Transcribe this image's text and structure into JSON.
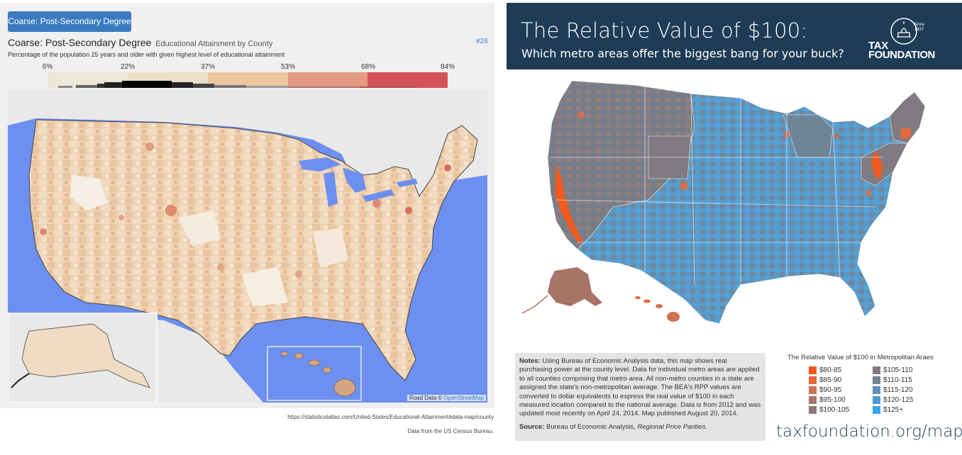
{
  "left": {
    "dropdown_label": "Coarse: Post-Secondary Degree",
    "title": "Coarse: Post-Secondary Degree",
    "title_sub": "Educational Attainment by County",
    "map_id": "#26",
    "description": "Percentage of the population 25 years and older with given highest level of educational attainment",
    "scale": {
      "ticks": [
        "6%",
        "22%",
        "37%",
        "53%",
        "68%",
        "84%"
      ],
      "colors": [
        "#ece5d2",
        "#efc9a4",
        "#e59b80",
        "#d45555"
      ]
    },
    "attribution_prefix": "Road Data © ",
    "attribution_link": "OpenStreetMap",
    "source_url": "https://statisticalatlas.com/United-States/Educational-Attainment#data-map/county",
    "source_note": "Data from the US Census Bureau."
  },
  "right": {
    "title": "The Relative Value of $100:",
    "subtitle": "Which metro areas offer the biggest bang for your buck?",
    "logo_since": "Since",
    "logo_year": "1937",
    "logo_line1": "TAX",
    "logo_line2": "FOUNDATION",
    "notes_label": "Notes:",
    "notes_text": "Using Bureau of Economic Analysis data, this map shows real purchasing power at the county level. Data for individual metro areas are applied to all counties comprising that metro area. All non-metro counties in a state are assigned the state's non-metropolitan average. The BEA's RPP values are converted to dollar equivalents to express the  real value of $100 in each measured location compared to the national average. Data is from 2012 and was updated most recently on April 24, 2014. Map published August 20, 2014.",
    "source_label": "Source:",
    "source_text": "Bureau of Economic Analysis, ",
    "source_italic": "Regional Price Parities.",
    "legend_title": "The Relative Value of $100 in Metropolitan Araes",
    "legend": [
      {
        "label": "$80-85",
        "color": "#f25a1d"
      },
      {
        "label": "$85-90",
        "color": "#e5683a"
      },
      {
        "label": "$90-95",
        "color": "#cf7050"
      },
      {
        "label": "$95-100",
        "color": "#a87468"
      },
      {
        "label": "$100-105",
        "color": "#8e7b78"
      },
      {
        "label": "$105-110",
        "color": "#807b80"
      },
      {
        "label": "$110-115",
        "color": "#6f8597"
      },
      {
        "label": "$115-120",
        "color": "#5e8fb4"
      },
      {
        "label": "$120-125",
        "color": "#4b9bd1"
      },
      {
        "label": "$125+",
        "color": "#37a6e9"
      }
    ],
    "url": "taxfoundation.org/maps"
  }
}
